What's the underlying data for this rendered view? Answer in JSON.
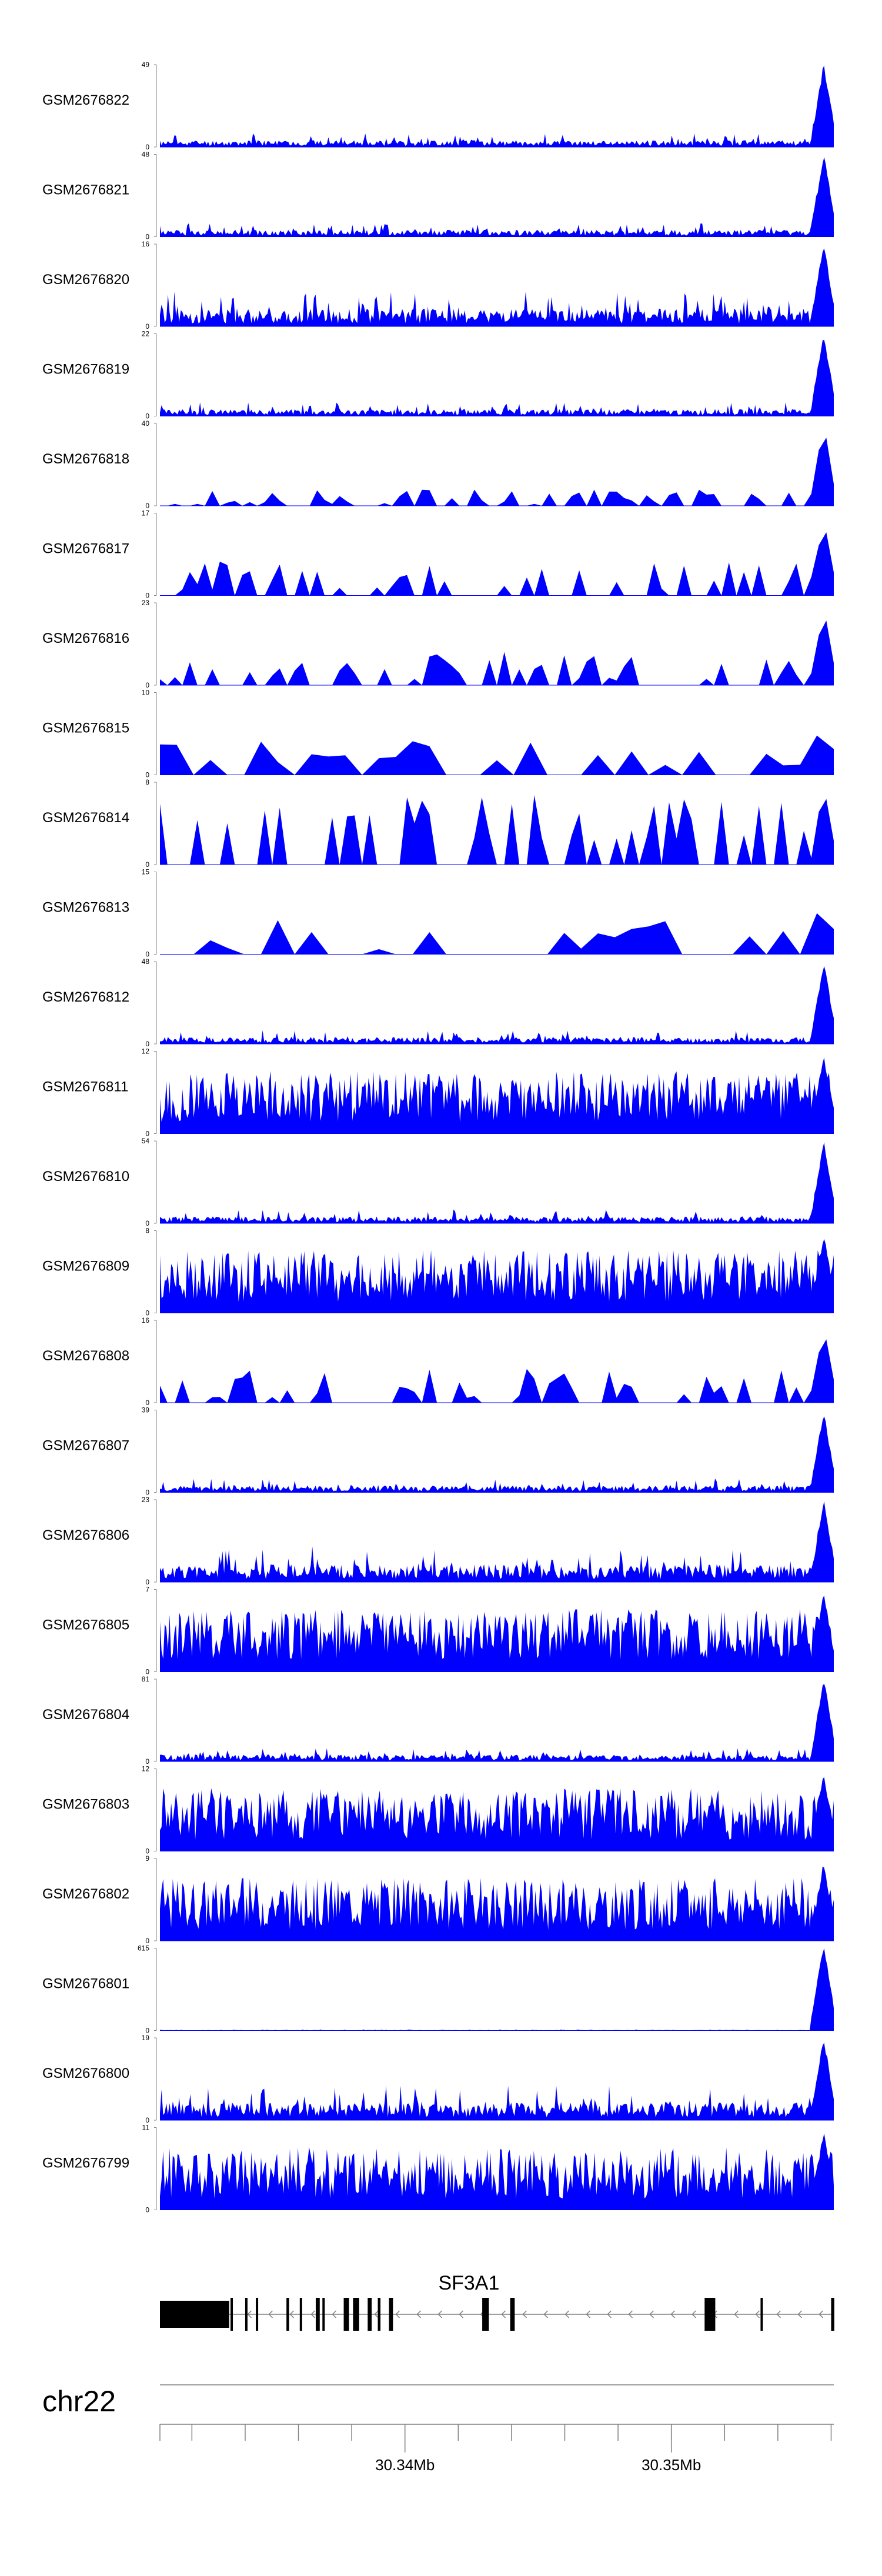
{
  "chart_data": {
    "type": "area",
    "series_color": "#0000ff",
    "x_range_mb": [
      30.3308,
      30.3561
    ],
    "tracks": [
      {
        "name": "GSM2676822",
        "ymax": 49,
        "ymin": 0,
        "pattern": "dense",
        "seed": 11,
        "shape": "low"
      },
      {
        "name": "GSM2676821",
        "ymax": 48,
        "ymin": 0,
        "pattern": "dense",
        "seed": 12,
        "shape": "low"
      },
      {
        "name": "GSM2676820",
        "ymax": 16,
        "ymin": 0,
        "pattern": "dense",
        "seed": 13,
        "shape": "mid"
      },
      {
        "name": "GSM2676819",
        "ymax": 22,
        "ymin": 0,
        "pattern": "dense",
        "seed": 14,
        "shape": "low"
      },
      {
        "name": "GSM2676818",
        "ymax": 40,
        "ymin": 0,
        "pattern": "sparse",
        "seed": 15,
        "shape": "low"
      },
      {
        "name": "GSM2676817",
        "ymax": 17,
        "ymin": 0,
        "pattern": "sparse",
        "seed": 16,
        "shape": "spiky"
      },
      {
        "name": "GSM2676816",
        "ymax": 23,
        "ymin": 0,
        "pattern": "sparse",
        "seed": 17,
        "shape": "spiky"
      },
      {
        "name": "GSM2676815",
        "ymax": 10,
        "ymin": 0,
        "pattern": "verysparse",
        "seed": 18,
        "shape": "spiky"
      },
      {
        "name": "GSM2676814",
        "ymax": 8,
        "ymin": 0,
        "pattern": "sparse",
        "seed": 19,
        "shape": "tall"
      },
      {
        "name": "GSM2676813",
        "ymax": 15,
        "ymin": 0,
        "pattern": "verysparse",
        "seed": 20,
        "shape": "spiky"
      },
      {
        "name": "GSM2676812",
        "ymax": 48,
        "ymin": 0,
        "pattern": "dense",
        "seed": 21,
        "shape": "low"
      },
      {
        "name": "GSM2676811",
        "ymax": 12,
        "ymin": 0,
        "pattern": "dense",
        "seed": 22,
        "shape": "high"
      },
      {
        "name": "GSM2676810",
        "ymax": 54,
        "ymin": 0,
        "pattern": "dense",
        "seed": 23,
        "shape": "low"
      },
      {
        "name": "GSM2676809",
        "ymax": 8,
        "ymin": 0,
        "pattern": "dense",
        "seed": 24,
        "shape": "high"
      },
      {
        "name": "GSM2676808",
        "ymax": 16,
        "ymin": 0,
        "pattern": "sparse",
        "seed": 25,
        "shape": "spiky"
      },
      {
        "name": "GSM2676807",
        "ymax": 39,
        "ymin": 0,
        "pattern": "dense",
        "seed": 26,
        "shape": "low"
      },
      {
        "name": "GSM2676806",
        "ymax": 23,
        "ymin": 0,
        "pattern": "dense",
        "seed": 27,
        "shape": "mid"
      },
      {
        "name": "GSM2676805",
        "ymax": 7,
        "ymin": 0,
        "pattern": "dense",
        "seed": 28,
        "shape": "high"
      },
      {
        "name": "GSM2676804",
        "ymax": 81,
        "ymin": 0,
        "pattern": "dense",
        "seed": 29,
        "shape": "low"
      },
      {
        "name": "GSM2676803",
        "ymax": 12,
        "ymin": 0,
        "pattern": "dense",
        "seed": 30,
        "shape": "high"
      },
      {
        "name": "GSM2676802",
        "ymax": 9,
        "ymin": 0,
        "pattern": "dense",
        "seed": 31,
        "shape": "high"
      },
      {
        "name": "GSM2676801",
        "ymax": 615,
        "ymin": 0,
        "pattern": "dense",
        "seed": 32,
        "shape": "flat"
      },
      {
        "name": "GSM2676800",
        "ymax": 19,
        "ymin": 0,
        "pattern": "dense",
        "seed": 33,
        "shape": "mid"
      },
      {
        "name": "GSM2676799",
        "ymax": 11,
        "ymin": 0,
        "pattern": "dense",
        "seed": 34,
        "shape": "high"
      }
    ],
    "gene": {
      "name": "SF3A1",
      "strand": "-",
      "exons_mb": [
        [
          30.3308,
          30.3334
        ],
        [
          30.33345,
          30.33352
        ],
        [
          30.334,
          30.33408
        ],
        [
          30.3344,
          30.33447
        ],
        [
          30.33555,
          30.33565
        ],
        [
          30.33605,
          30.33612
        ],
        [
          30.33665,
          30.3368
        ],
        [
          30.3369,
          30.33698
        ],
        [
          30.3377,
          30.3379
        ],
        [
          30.33805,
          30.33828
        ],
        [
          30.3386,
          30.33875
        ],
        [
          30.33898,
          30.33908
        ],
        [
          30.3394,
          30.33955
        ],
        [
          30.3429,
          30.34315
        ],
        [
          30.34395,
          30.34412
        ],
        [
          30.35125,
          30.35165
        ],
        [
          30.35335,
          30.35342
        ],
        [
          30.356,
          30.35612
        ]
      ]
    },
    "chromosome": "chr22",
    "axis": {
      "labels": [
        {
          "x": 30.34,
          "text": "30.34Mb"
        },
        {
          "x": 30.35,
          "text": "30.35Mb"
        }
      ],
      "minor_tick_step_mb": 0.002
    }
  }
}
